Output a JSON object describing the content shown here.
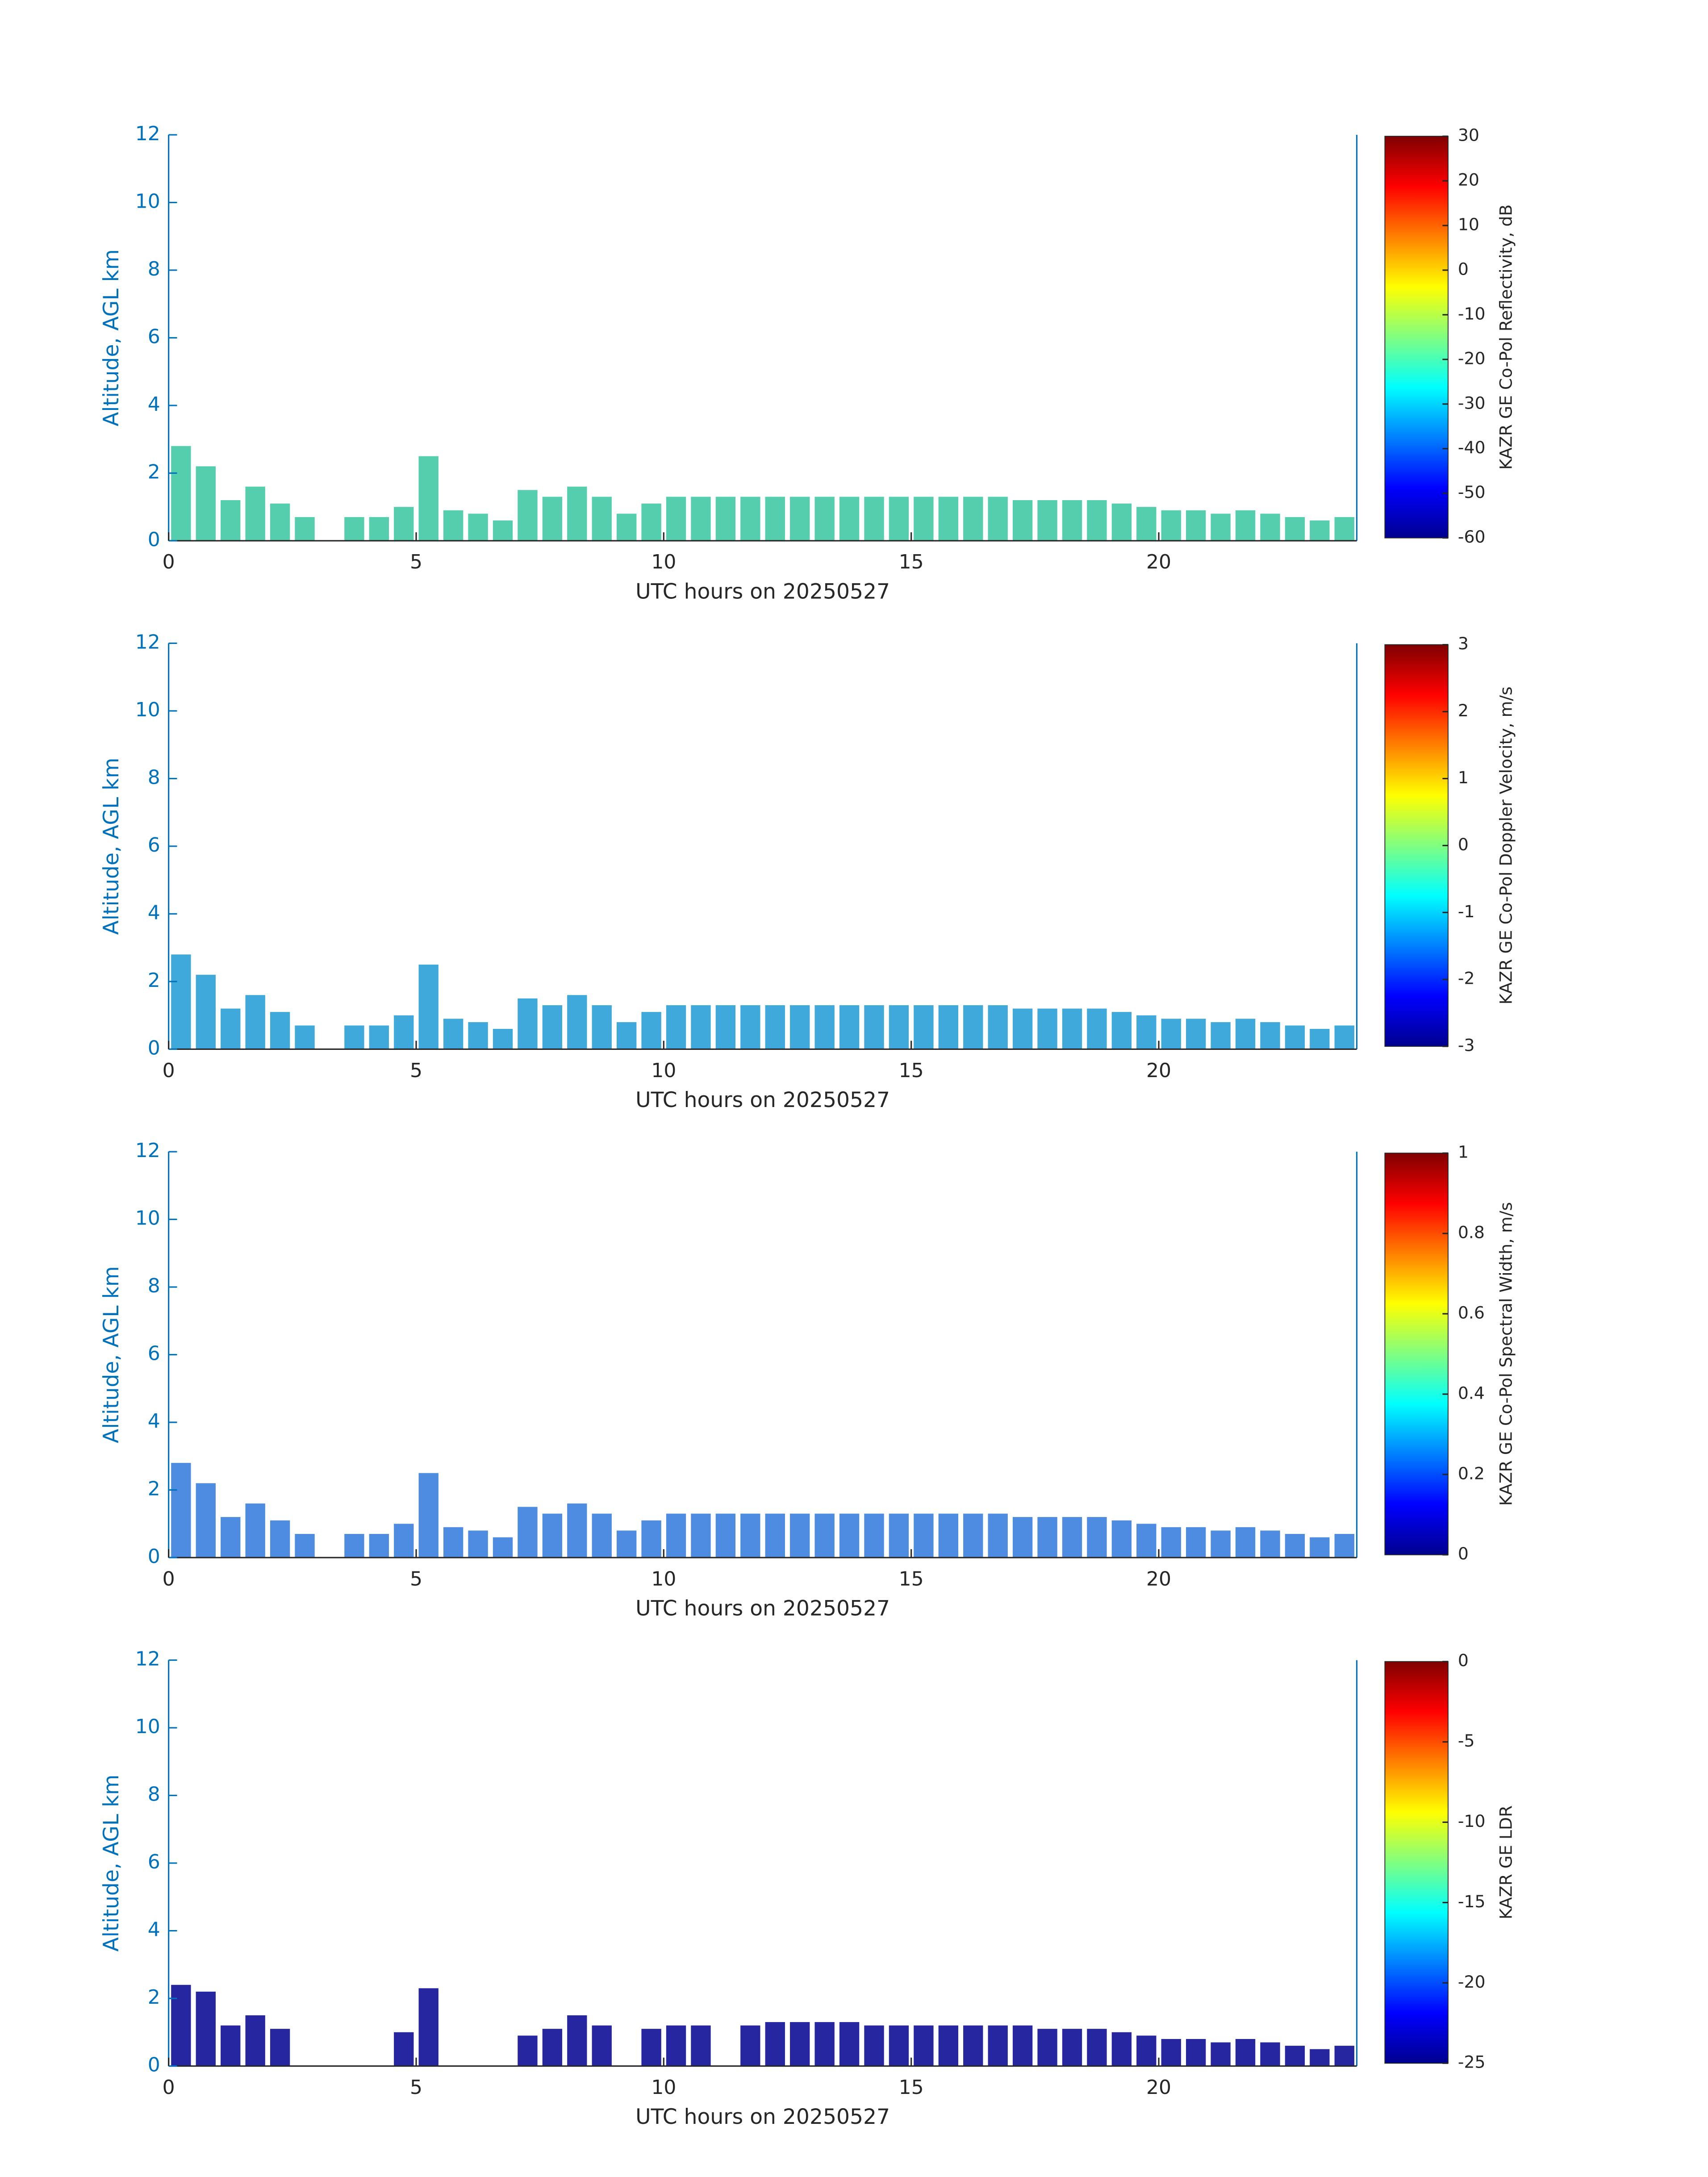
{
  "chart_data": [
    {
      "type": "radar",
      "xlabel": "UTC hours on 20250527",
      "ylabel": "Altitude, AGL km",
      "xlim": [
        0,
        24
      ],
      "ylim": [
        0,
        12
      ],
      "xticks": [
        0,
        5,
        10,
        15,
        20
      ],
      "yticks": [
        0,
        2,
        4,
        6,
        8,
        10,
        12
      ],
      "x": [
        0.25,
        0.75,
        1.25,
        1.75,
        2.25,
        2.75,
        3.25,
        3.75,
        4.25,
        4.75,
        5.25,
        5.75,
        6.25,
        6.75,
        7.25,
        7.75,
        8.25,
        8.75,
        9.25,
        9.75,
        10.25,
        10.75,
        11.25,
        11.75,
        12.25,
        12.75,
        13.25,
        13.75,
        14.25,
        14.75,
        15.25,
        15.75,
        16.25,
        16.75,
        17.25,
        17.75,
        18.25,
        18.75,
        19.25,
        19.75,
        20.25,
        20.75,
        21.25,
        21.75,
        22.25,
        22.75,
        23.25,
        23.75
      ],
      "values": [
        2.8,
        2.2,
        1.2,
        1.6,
        1.1,
        0.7,
        null,
        0.7,
        0.7,
        1.0,
        2.5,
        0.9,
        0.8,
        0.6,
        1.5,
        1.3,
        1.6,
        1.3,
        0.8,
        1.1,
        1.3,
        1.3,
        1.3,
        1.3,
        1.3,
        1.3,
        1.3,
        1.3,
        1.3,
        1.3,
        1.3,
        1.3,
        1.3,
        1.3,
        1.2,
        1.2,
        1.2,
        1.2,
        1.1,
        1.0,
        0.9,
        0.9,
        0.8,
        0.9,
        0.8,
        0.7,
        0.6,
        0.7
      ],
      "color": "#37c6a0",
      "colorbar": {
        "label": "KAZR GE Co-Pol Reflectivity, dB",
        "lim": [
          -60,
          30
        ],
        "ticks": [
          -60,
          -50,
          -40,
          -30,
          -20,
          -10,
          0,
          10,
          20,
          30
        ],
        "colormap": "jet"
      }
    },
    {
      "type": "radar",
      "xlabel": "UTC hours on 20250527",
      "ylabel": "Altitude, AGL km",
      "xlim": [
        0,
        24
      ],
      "ylim": [
        0,
        12
      ],
      "xticks": [
        0,
        5,
        10,
        15,
        20
      ],
      "yticks": [
        0,
        2,
        4,
        6,
        8,
        10,
        12
      ],
      "x": [
        0.25,
        0.75,
        1.25,
        1.75,
        2.25,
        2.75,
        3.25,
        3.75,
        4.25,
        4.75,
        5.25,
        5.75,
        6.25,
        6.75,
        7.25,
        7.75,
        8.25,
        8.75,
        9.25,
        9.75,
        10.25,
        10.75,
        11.25,
        11.75,
        12.25,
        12.75,
        13.25,
        13.75,
        14.25,
        14.75,
        15.25,
        15.75,
        16.25,
        16.75,
        17.25,
        17.75,
        18.25,
        18.75,
        19.25,
        19.75,
        20.25,
        20.75,
        21.25,
        21.75,
        22.25,
        22.75,
        23.25,
        23.75
      ],
      "values": [
        2.8,
        2.2,
        1.2,
        1.6,
        1.1,
        0.7,
        null,
        0.7,
        0.7,
        1.0,
        2.5,
        0.9,
        0.8,
        0.6,
        1.5,
        1.3,
        1.6,
        1.3,
        0.8,
        1.1,
        1.3,
        1.3,
        1.3,
        1.3,
        1.3,
        1.3,
        1.3,
        1.3,
        1.3,
        1.3,
        1.3,
        1.3,
        1.3,
        1.3,
        1.2,
        1.2,
        1.2,
        1.2,
        1.1,
        1.0,
        0.9,
        0.9,
        0.8,
        0.9,
        0.8,
        0.7,
        0.6,
        0.7
      ],
      "color": "#1f9ad6",
      "colorbar": {
        "label": "KAZR GE Co-Pol Doppler Velocity, m/s",
        "lim": [
          -3,
          3
        ],
        "ticks": [
          -3,
          -2,
          -1,
          0,
          1,
          2,
          3
        ],
        "colormap": "jet"
      }
    },
    {
      "type": "radar",
      "xlabel": "UTC hours on 20250527",
      "ylabel": "Altitude, AGL km",
      "xlim": [
        0,
        24
      ],
      "ylim": [
        0,
        12
      ],
      "xticks": [
        0,
        5,
        10,
        15,
        20
      ],
      "yticks": [
        0,
        2,
        4,
        6,
        8,
        10,
        12
      ],
      "x": [
        0.25,
        0.75,
        1.25,
        1.75,
        2.25,
        2.75,
        3.25,
        3.75,
        4.25,
        4.75,
        5.25,
        5.75,
        6.25,
        6.75,
        7.25,
        7.75,
        8.25,
        8.75,
        9.25,
        9.75,
        10.25,
        10.75,
        11.25,
        11.75,
        12.25,
        12.75,
        13.25,
        13.75,
        14.25,
        14.75,
        15.25,
        15.75,
        16.25,
        16.75,
        17.25,
        17.75,
        18.25,
        18.75,
        19.25,
        19.75,
        20.25,
        20.75,
        21.25,
        21.75,
        22.25,
        22.75,
        23.25,
        23.75
      ],
      "values": [
        2.8,
        2.2,
        1.2,
        1.6,
        1.1,
        0.7,
        null,
        0.7,
        0.7,
        1.0,
        2.5,
        0.9,
        0.8,
        0.6,
        1.5,
        1.3,
        1.6,
        1.3,
        0.8,
        1.1,
        1.3,
        1.3,
        1.3,
        1.3,
        1.3,
        1.3,
        1.3,
        1.3,
        1.3,
        1.3,
        1.3,
        1.3,
        1.3,
        1.3,
        1.2,
        1.2,
        1.2,
        1.2,
        1.1,
        1.0,
        0.9,
        0.9,
        0.8,
        0.9,
        0.8,
        0.7,
        0.6,
        0.7
      ],
      "color": "#2f78dc",
      "colorbar": {
        "label": "KAZR GE Co-Pol Spectral Width, m/s",
        "lim": [
          0,
          1
        ],
        "ticks": [
          0,
          0.2,
          0.4,
          0.6,
          0.8,
          1
        ],
        "colormap": "jet"
      }
    },
    {
      "type": "radar",
      "xlabel": "UTC hours on 20250527",
      "ylabel": "Altitude, AGL km",
      "xlim": [
        0,
        24
      ],
      "ylim": [
        0,
        12
      ],
      "xticks": [
        0,
        5,
        10,
        15,
        20
      ],
      "yticks": [
        0,
        2,
        4,
        6,
        8,
        10,
        12
      ],
      "x": [
        0.25,
        0.75,
        1.25,
        1.75,
        2.25,
        2.75,
        3.25,
        3.75,
        4.25,
        4.75,
        5.25,
        5.75,
        6.25,
        6.75,
        7.25,
        7.75,
        8.25,
        8.75,
        9.25,
        9.75,
        10.25,
        10.75,
        11.25,
        11.75,
        12.25,
        12.75,
        13.25,
        13.75,
        14.25,
        14.75,
        15.25,
        15.75,
        16.25,
        16.75,
        17.25,
        17.75,
        18.25,
        18.75,
        19.25,
        19.75,
        20.25,
        20.75,
        21.25,
        21.75,
        22.25,
        22.75,
        23.25,
        23.75
      ],
      "values": [
        2.4,
        2.2,
        1.2,
        1.5,
        1.1,
        null,
        null,
        null,
        null,
        1.0,
        2.3,
        null,
        null,
        null,
        0.9,
        1.1,
        1.5,
        1.2,
        null,
        1.1,
        1.2,
        1.2,
        null,
        1.2,
        1.3,
        1.3,
        1.3,
        1.3,
        1.2,
        1.2,
        1.2,
        1.2,
        1.2,
        1.2,
        1.2,
        1.1,
        1.1,
        1.1,
        1.0,
        0.9,
        0.8,
        0.8,
        0.7,
        0.8,
        0.7,
        0.6,
        0.5,
        0.6
      ],
      "color": "#00008f",
      "colorbar": {
        "label": "KAZR GE LDR",
        "lim": [
          -25,
          0
        ],
        "ticks": [
          -25,
          -20,
          -15,
          -10,
          -5,
          0
        ],
        "colormap": "jet"
      }
    }
  ]
}
